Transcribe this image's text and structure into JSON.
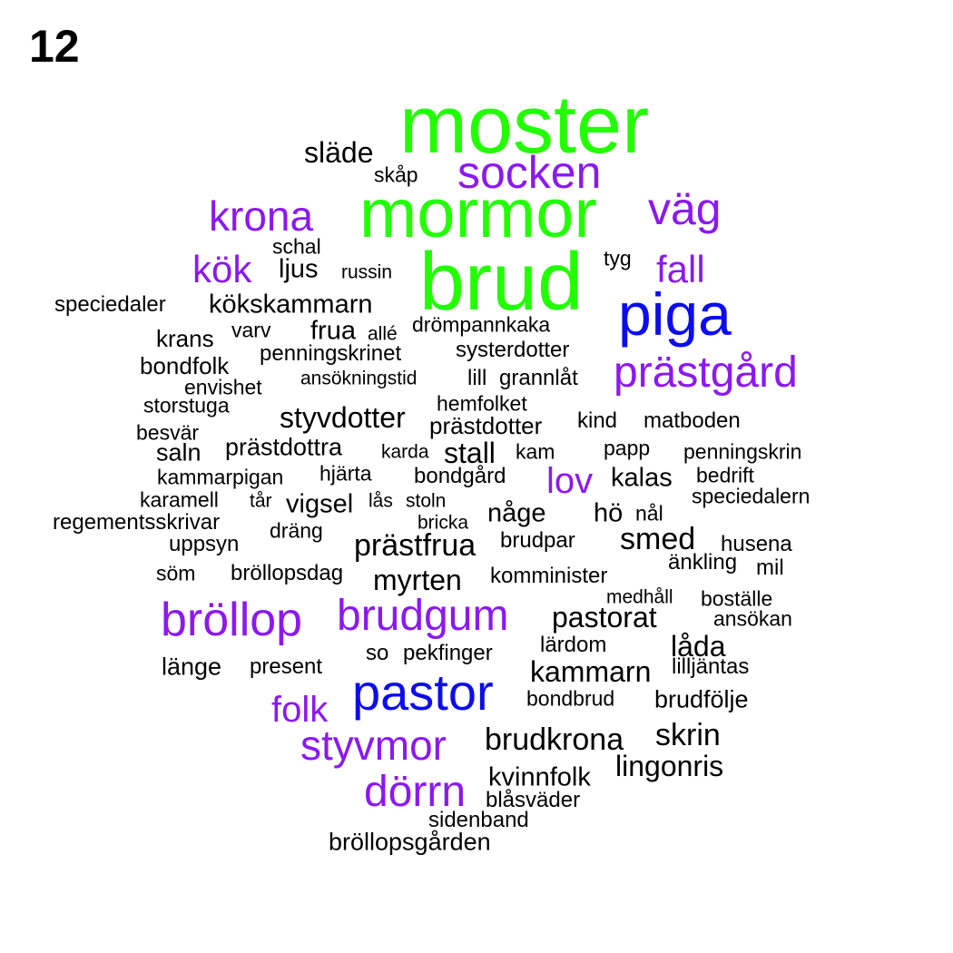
{
  "panel_label": "12",
  "colors": {
    "green": "#22ff00",
    "purple": "#8c18f2",
    "blue": "#0c0cf0",
    "black": "#000000"
  },
  "words": [
    {
      "text": "moster",
      "color": "green"
    },
    {
      "text": "mormor",
      "color": "green"
    },
    {
      "text": "brud",
      "color": "green"
    },
    {
      "text": "piga",
      "color": "blue"
    },
    {
      "text": "pastor",
      "color": "blue"
    },
    {
      "text": "socken",
      "color": "purple"
    },
    {
      "text": "väg",
      "color": "purple"
    },
    {
      "text": "krona",
      "color": "purple"
    },
    {
      "text": "kök",
      "color": "purple"
    },
    {
      "text": "fall",
      "color": "purple"
    },
    {
      "text": "prästgård",
      "color": "purple"
    },
    {
      "text": "lov",
      "color": "purple"
    },
    {
      "text": "bröllop",
      "color": "purple"
    },
    {
      "text": "brudgum",
      "color": "purple"
    },
    {
      "text": "folk",
      "color": "purple"
    },
    {
      "text": "styvmor",
      "color": "purple"
    },
    {
      "text": "dörrn",
      "color": "purple"
    },
    {
      "text": "släde",
      "color": "black"
    },
    {
      "text": "skåp",
      "color": "black"
    },
    {
      "text": "schal",
      "color": "black"
    },
    {
      "text": "ljus",
      "color": "black"
    },
    {
      "text": "russin",
      "color": "black"
    },
    {
      "text": "tyg",
      "color": "black"
    },
    {
      "text": "speciedaler",
      "color": "black"
    },
    {
      "text": "kökskammarn",
      "color": "black"
    },
    {
      "text": "krans",
      "color": "black"
    },
    {
      "text": "varv",
      "color": "black"
    },
    {
      "text": "frua",
      "color": "black"
    },
    {
      "text": "allé",
      "color": "black"
    },
    {
      "text": "drömpannkaka",
      "color": "black"
    },
    {
      "text": "systerdotter",
      "color": "black"
    },
    {
      "text": "bondfolk",
      "color": "black"
    },
    {
      "text": "penningskrinet",
      "color": "black"
    },
    {
      "text": "envishet",
      "color": "black"
    },
    {
      "text": "ansökningstid",
      "color": "black"
    },
    {
      "text": "lill",
      "color": "black"
    },
    {
      "text": "grannlåt",
      "color": "black"
    },
    {
      "text": "storstuga",
      "color": "black"
    },
    {
      "text": "hemfolket",
      "color": "black"
    },
    {
      "text": "styvdotter",
      "color": "black"
    },
    {
      "text": "prästdotter",
      "color": "black"
    },
    {
      "text": "kind",
      "color": "black"
    },
    {
      "text": "matboden",
      "color": "black"
    },
    {
      "text": "besvär",
      "color": "black"
    },
    {
      "text": "saln",
      "color": "black"
    },
    {
      "text": "prästdottra",
      "color": "black"
    },
    {
      "text": "karda",
      "color": "black"
    },
    {
      "text": "stall",
      "color": "black"
    },
    {
      "text": "kam",
      "color": "black"
    },
    {
      "text": "papp",
      "color": "black"
    },
    {
      "text": "penningskrin",
      "color": "black"
    },
    {
      "text": "kammarpigan",
      "color": "black"
    },
    {
      "text": "hjärta",
      "color": "black"
    },
    {
      "text": "bondgård",
      "color": "black"
    },
    {
      "text": "kalas",
      "color": "black"
    },
    {
      "text": "bedrift",
      "color": "black"
    },
    {
      "text": "karamell",
      "color": "black"
    },
    {
      "text": "tår",
      "color": "black"
    },
    {
      "text": "vigsel",
      "color": "black"
    },
    {
      "text": "lås",
      "color": "black"
    },
    {
      "text": "stoln",
      "color": "black"
    },
    {
      "text": "speciedalern",
      "color": "black"
    },
    {
      "text": "regementsskrivar",
      "color": "black"
    },
    {
      "text": "bricka",
      "color": "black"
    },
    {
      "text": "någe",
      "color": "black"
    },
    {
      "text": "hö",
      "color": "black"
    },
    {
      "text": "nål",
      "color": "black"
    },
    {
      "text": "dräng",
      "color": "black"
    },
    {
      "text": "uppsyn",
      "color": "black"
    },
    {
      "text": "prästfrua",
      "color": "black"
    },
    {
      "text": "brudpar",
      "color": "black"
    },
    {
      "text": "smed",
      "color": "black"
    },
    {
      "text": "husena",
      "color": "black"
    },
    {
      "text": "söm",
      "color": "black"
    },
    {
      "text": "bröllopsdag",
      "color": "black"
    },
    {
      "text": "myrten",
      "color": "black"
    },
    {
      "text": "komminister",
      "color": "black"
    },
    {
      "text": "änkling",
      "color": "black"
    },
    {
      "text": "mil",
      "color": "black"
    },
    {
      "text": "medhåll",
      "color": "black"
    },
    {
      "text": "boställe",
      "color": "black"
    },
    {
      "text": "pastorat",
      "color": "black"
    },
    {
      "text": "ansökan",
      "color": "black"
    },
    {
      "text": "lärdom",
      "color": "black"
    },
    {
      "text": "låda",
      "color": "black"
    },
    {
      "text": "länge",
      "color": "black"
    },
    {
      "text": "present",
      "color": "black"
    },
    {
      "text": "so",
      "color": "black"
    },
    {
      "text": "pekfinger",
      "color": "black"
    },
    {
      "text": "kammarn",
      "color": "black"
    },
    {
      "text": "lilljäntas",
      "color": "black"
    },
    {
      "text": "bondbrud",
      "color": "black"
    },
    {
      "text": "brudfölje",
      "color": "black"
    },
    {
      "text": "brudkrona",
      "color": "black"
    },
    {
      "text": "skrin",
      "color": "black"
    },
    {
      "text": "lingonris",
      "color": "black"
    },
    {
      "text": "kvinnfolk",
      "color": "black"
    },
    {
      "text": "blåsväder",
      "color": "black"
    },
    {
      "text": "sidenband",
      "color": "black"
    },
    {
      "text": "bröllopsgården",
      "color": "black"
    }
  ]
}
